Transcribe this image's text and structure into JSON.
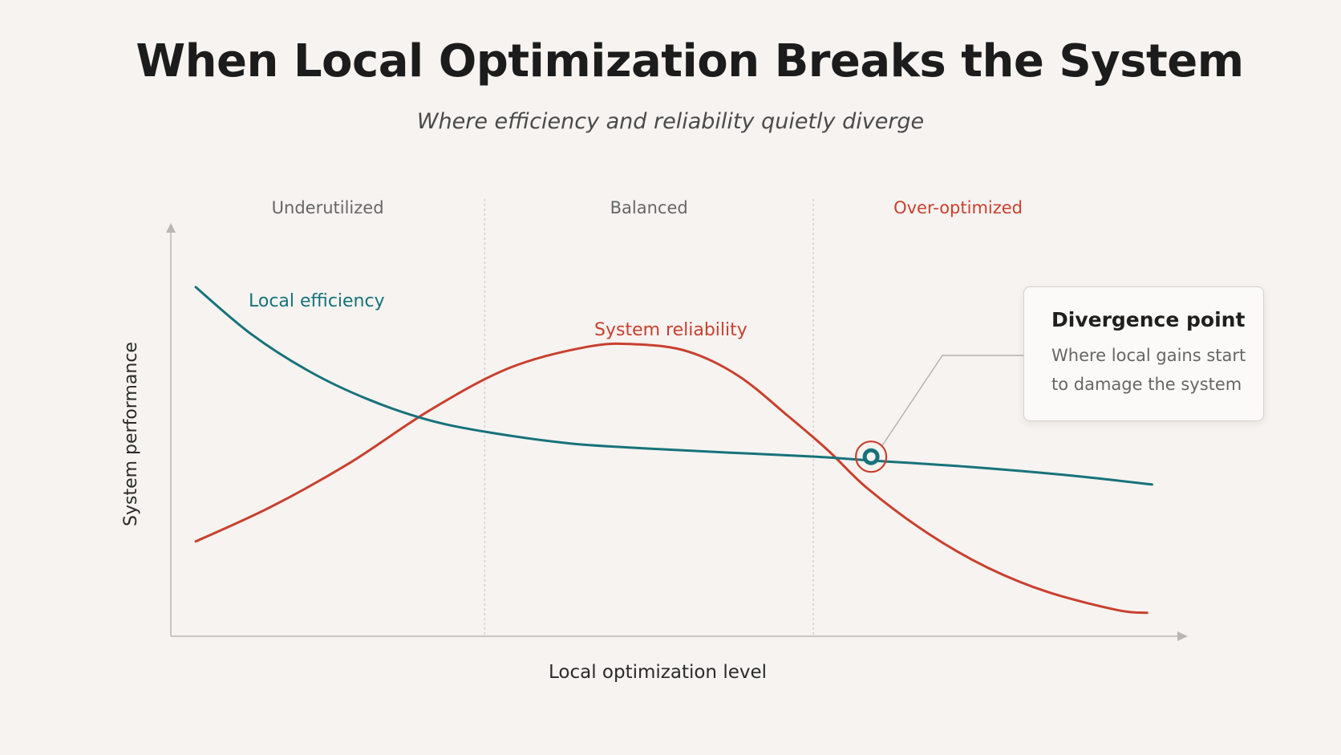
{
  "page": {
    "title": "When Local Optimization Breaks the System",
    "subtitle": "Where efficiency and reliability quietly diverge"
  },
  "callout": {
    "title": "Divergence point",
    "text": "Where local gains start to damage the system"
  },
  "colors": {
    "background": "#f6f3f0",
    "efficiency": "#17727a",
    "reliability": "#c9402f",
    "axis": "#b9b6b3",
    "region_default": "#666666"
  },
  "chart_data": {
    "type": "line",
    "title": "When Local Optimization Breaks the System",
    "subtitle": "Where efficiency and reliability quietly diverge",
    "xlabel": "Local optimization level",
    "ylabel": "System performance",
    "xlim": [
      0,
      100
    ],
    "ylim": [
      0,
      100
    ],
    "grid": false,
    "axis_ticks": false,
    "regions": [
      {
        "label": "Underutilized",
        "from": 0,
        "to": 31.5
      },
      {
        "label": "Balanced",
        "from": 31.5,
        "to": 64.5
      },
      {
        "label": "Over-optimized",
        "from": 64.5,
        "to": 100,
        "highlight": true
      }
    ],
    "series": [
      {
        "name": "Local efficiency",
        "color": "#17727a",
        "x": [
          2.5,
          8,
          14,
          20,
          26,
          32,
          40,
          48,
          56,
          64,
          70,
          80,
          90,
          98.5
        ],
        "y": [
          86.5,
          75,
          65.5,
          58.5,
          53.5,
          50.5,
          47.8,
          46.5,
          45.5,
          44.6,
          43.6,
          42,
          39.9,
          37.6
        ]
      },
      {
        "name": "System reliability",
        "color": "#c9402f",
        "x": [
          2.5,
          10,
          18,
          26,
          34,
          42,
          47,
          52,
          57,
          62,
          66,
          70,
          76,
          82,
          88,
          95,
          98
        ],
        "y": [
          23.5,
          32,
          43,
          56,
          66.5,
          71.8,
          72.3,
          70.5,
          64.5,
          54.5,
          46,
          36.5,
          25.5,
          17,
          11,
          6.5,
          5.8
        ]
      }
    ],
    "annotations": [
      {
        "type": "marker",
        "label": "Divergence point",
        "x": 70.3,
        "y": 44.5
      }
    ]
  }
}
